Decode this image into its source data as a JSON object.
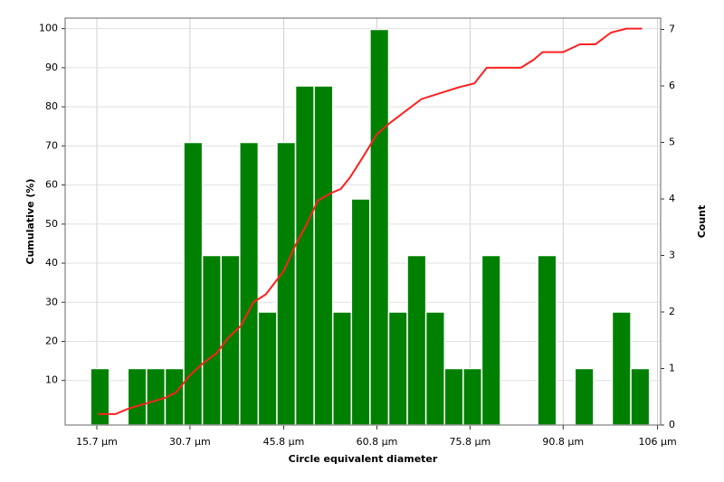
{
  "chart_data": {
    "type": "histogram",
    "xlabel": "Circle equivalent diameter",
    "ylabel": "Cumulative (%)",
    "y2label": "Count",
    "bins": [
      14.7,
      17.7,
      20.7,
      23.7,
      26.7,
      29.7,
      32.7,
      35.7,
      38.7,
      41.7,
      44.7,
      47.7,
      50.7,
      53.7,
      56.7,
      59.7,
      62.7,
      65.7,
      68.7,
      71.7,
      74.7,
      77.7,
      80.7,
      83.7,
      86.7,
      89.7,
      92.7,
      95.7,
      98.7,
      101.7,
      104.7
    ],
    "values": [
      1,
      0,
      1,
      1,
      1,
      5,
      3,
      3,
      5,
      2,
      5,
      6,
      6,
      2,
      4,
      7,
      2,
      3,
      2,
      1,
      1,
      3,
      0,
      0,
      3,
      0,
      1,
      0,
      2,
      1
    ],
    "axis": "y2",
    "color": "#008000",
    "cumulative": {
      "color": "#ff2020",
      "x": [
        15.9,
        18.7,
        20.8,
        23.8,
        26.8,
        28.5,
        30.5,
        32.5,
        35,
        36.9,
        38.9,
        40.9,
        42.9,
        45.8,
        47.5,
        49.5,
        51.3,
        53.5,
        55,
        56.5,
        58.5,
        60.8,
        63,
        65.5,
        68,
        70,
        72,
        74,
        76.5,
        78.5,
        80,
        84,
        86,
        87.5,
        90.8,
        93.5,
        96,
        98.5,
        101,
        103.5
      ],
      "values": [
        1.4,
        1.4,
        2.8,
        4.2,
        5.6,
        7,
        11,
        14,
        17,
        21,
        24,
        30,
        32,
        38,
        44,
        50,
        56,
        58,
        59,
        62,
        67,
        73,
        76,
        79,
        82,
        83,
        84,
        85,
        86,
        90,
        90,
        90,
        92,
        94,
        94,
        96,
        96,
        99,
        100,
        100
      ]
    },
    "xlim": [
      10.6,
      106.5
    ],
    "xticks": [
      {
        "value": 15.7,
        "label": "15.7 µm"
      },
      {
        "value": 30.7,
        "label": "30.7 µm"
      },
      {
        "value": 45.8,
        "label": "45.8 µm"
      },
      {
        "value": 60.8,
        "label": "60.8 µm"
      },
      {
        "value": 75.8,
        "label": "75.8 µm"
      },
      {
        "value": 90.8,
        "label": "90.8 µm"
      },
      {
        "value": 106,
        "label": "106 µm"
      }
    ],
    "ylim": [
      -1.4,
      102.7
    ],
    "yticks": [
      10,
      20,
      30,
      40,
      50,
      60,
      70,
      80,
      90,
      100
    ],
    "y2lim": [
      0,
      7.2
    ],
    "y2ticks": [
      0,
      1,
      2,
      3,
      4,
      5,
      6,
      7
    ],
    "grid": true
  }
}
